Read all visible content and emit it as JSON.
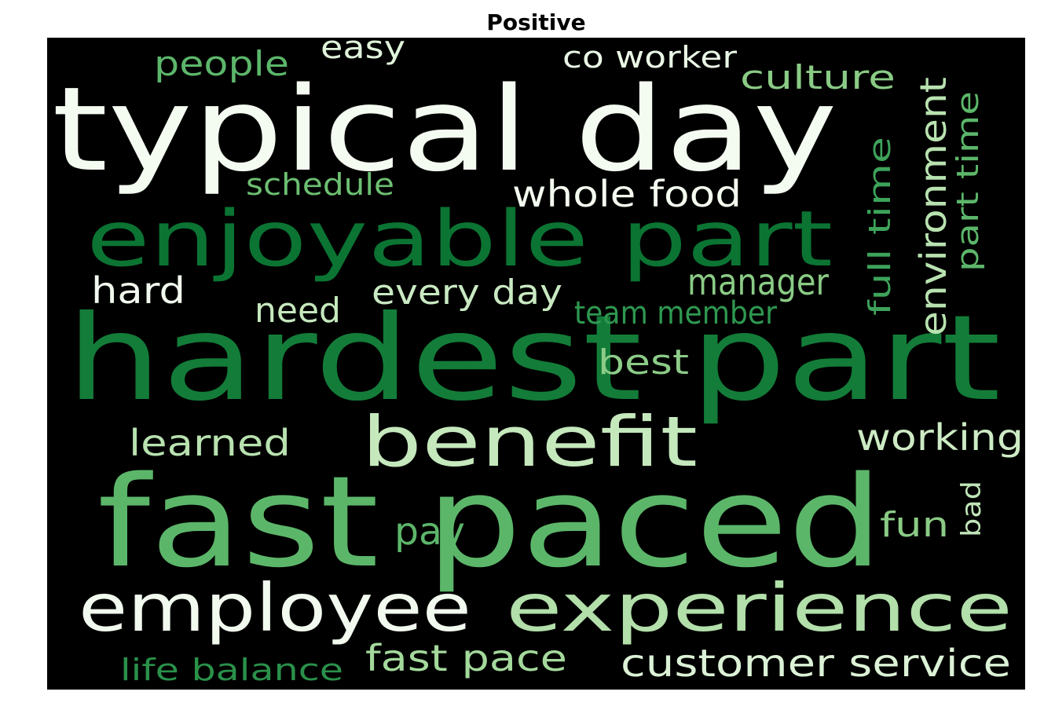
{
  "title": "Positive",
  "background_color": "#000000",
  "words": [
    {
      "text": "hardest part",
      "color": "#137c39",
      "orientation": "horizontal"
    },
    {
      "text": "fast paced",
      "color": "#5cb66a",
      "orientation": "horizontal"
    },
    {
      "text": "typical day",
      "color": "#f4fbf1",
      "orientation": "horizontal"
    },
    {
      "text": "enjoyable part",
      "color": "#0b7433",
      "orientation": "horizontal"
    },
    {
      "text": "employee",
      "color": "#f2faef",
      "orientation": "horizontal"
    },
    {
      "text": "experience",
      "color": "#b2dfaa",
      "orientation": "horizontal"
    },
    {
      "text": "benefit",
      "color": "#c5e8bd",
      "orientation": "horizontal"
    },
    {
      "text": "whole food",
      "color": "#f3faef",
      "orientation": "horizontal"
    },
    {
      "text": "customer service",
      "color": "#dcf2d6",
      "orientation": "horizontal"
    },
    {
      "text": "working",
      "color": "#cdebc4",
      "orientation": "horizontal"
    },
    {
      "text": "manager",
      "color": "#8acb85",
      "orientation": "horizontal"
    },
    {
      "text": "learned",
      "color": "#b8e2b0",
      "orientation": "horizontal"
    },
    {
      "text": "fast pace",
      "color": "#a4d99c",
      "orientation": "horizontal"
    },
    {
      "text": "people",
      "color": "#5cb66a",
      "orientation": "horizontal"
    },
    {
      "text": "co worker",
      "color": "#eaf7e6",
      "orientation": "horizontal"
    },
    {
      "text": "culture",
      "color": "#8acb85",
      "orientation": "horizontal"
    },
    {
      "text": "easy",
      "color": "#dff3da",
      "orientation": "horizontal"
    },
    {
      "text": "schedule",
      "color": "#6cbf72",
      "orientation": "horizontal"
    },
    {
      "text": "hard",
      "color": "#f2faef",
      "orientation": "horizontal"
    },
    {
      "text": "every day",
      "color": "#c9e9c2",
      "orientation": "horizontal"
    },
    {
      "text": "need",
      "color": "#c5e8bd",
      "orientation": "horizontal"
    },
    {
      "text": "team member",
      "color": "#2e9850",
      "orientation": "horizontal"
    },
    {
      "text": "best",
      "color": "#8ccc88",
      "orientation": "horizontal"
    },
    {
      "text": "pay",
      "color": "#5cb66a",
      "orientation": "horizontal"
    },
    {
      "text": "fun",
      "color": "#8acb85",
      "orientation": "horizontal"
    },
    {
      "text": "life balance",
      "color": "#2a914a",
      "orientation": "horizontal"
    },
    {
      "text": "environment",
      "color": "#b8e2b0",
      "orientation": "vertical"
    },
    {
      "text": "part time",
      "color": "#5cb66a",
      "orientation": "vertical"
    },
    {
      "text": "full time",
      "color": "#3da35a",
      "orientation": "vertical"
    },
    {
      "text": "bad",
      "color": "#c0e5b8",
      "orientation": "vertical"
    }
  ]
}
